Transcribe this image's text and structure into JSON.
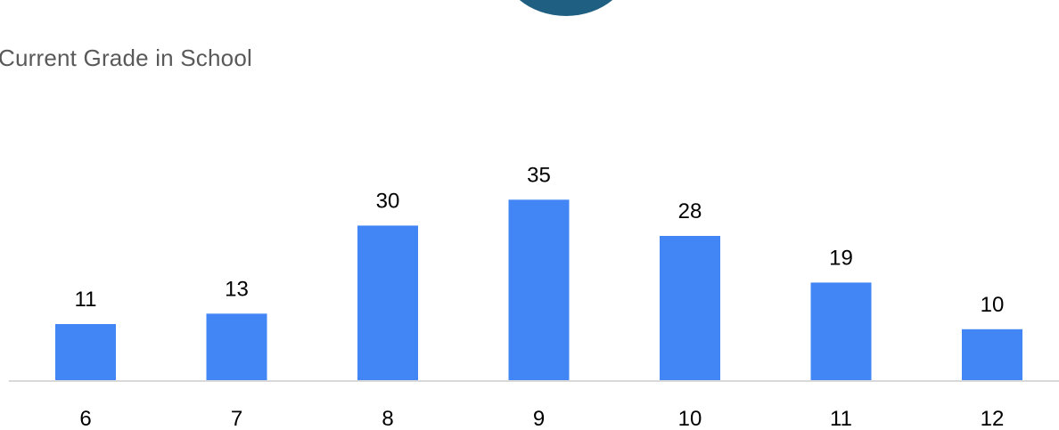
{
  "chart_data": {
    "type": "bar",
    "title": "Current Grade in School",
    "xlabel": "",
    "ylabel": "",
    "categories": [
      "6",
      "7",
      "8",
      "9",
      "10",
      "11",
      "12"
    ],
    "values": [
      11,
      13,
      30,
      35,
      28,
      19,
      10
    ],
    "ylim": [
      0,
      35
    ],
    "grid": false,
    "legend": "none",
    "data_labels": true
  },
  "colors": {
    "bar": "#4285f4",
    "axis": "#d9d9d9",
    "title": "#595959",
    "decor": "#1f5f82"
  }
}
